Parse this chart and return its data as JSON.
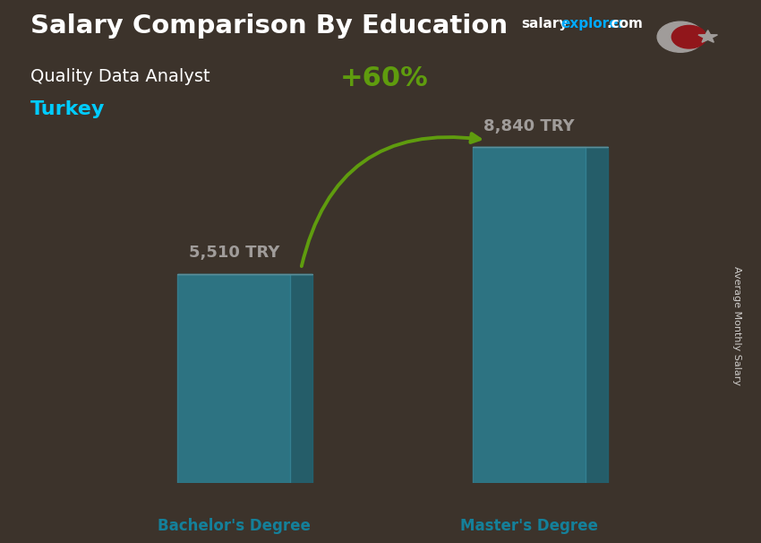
{
  "title_main": "Salary Comparison By Education",
  "subtitle": "Quality Data Analyst",
  "country": "Turkey",
  "categories": [
    "Bachelor's Degree",
    "Master's Degree"
  ],
  "values": [
    5510,
    8840
  ],
  "value_labels": [
    "5,510 TRY",
    "8,840 TRY"
  ],
  "bar_color_face": "#29c8f0",
  "bar_color_side": "#1899bb",
  "bar_color_top": "#55ddff",
  "percent_label": "+60%",
  "ylabel_rotated": "Average Monthly Salary",
  "bg_color": "#5a4a3a",
  "title_color": "#ffffff",
  "subtitle_color": "#ffffff",
  "country_color": "#00ccff",
  "value_color": "#ffffff",
  "percent_color": "#88ff00",
  "xlabel_color": "#00ccff",
  "salary_color": "#ffffff",
  "explorer_color": "#00aaff",
  "flag_bg": "#e30a17",
  "ylim": [
    0,
    11000
  ],
  "bar_alpha": 0.85,
  "x_positions": [
    1.0,
    2.7
  ],
  "bar_width": 0.65,
  "bar_depth": 0.13
}
